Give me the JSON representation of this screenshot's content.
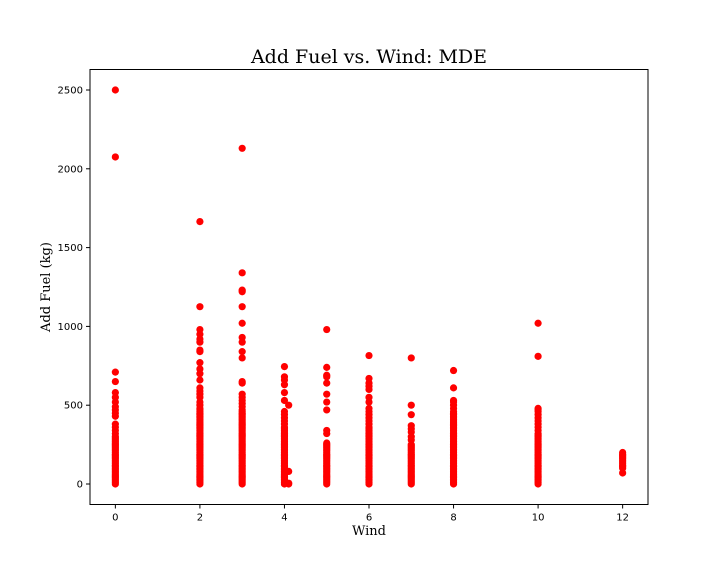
{
  "chart_data": {
    "type": "scatter",
    "title": "Add Fuel vs. Wind: MDE",
    "xlabel": "Wind",
    "ylabel": "Add Fuel (kg)",
    "xlim": [
      -0.6,
      12.6
    ],
    "ylim": [
      -130,
      2630
    ],
    "xticks": [
      0,
      2,
      4,
      6,
      8,
      10,
      12
    ],
    "yticks": [
      0,
      500,
      1000,
      1500,
      2000,
      2500
    ],
    "grid": false,
    "marker_color": "#ff0000",
    "series": [
      {
        "points": [
          {
            "wind": 0,
            "y": [
              0,
              10,
              20,
              30,
              40,
              50,
              60,
              70,
              80,
              90,
              100,
              110,
              120,
              130,
              140,
              150,
              160,
              170,
              180,
              190,
              200,
              210,
              220,
              230,
              240,
              250,
              260,
              270,
              280,
              290,
              300,
              320,
              340,
              360,
              380,
              430,
              450,
              470,
              490,
              520,
              550,
              580,
              650,
              710,
              2075,
              2500
            ]
          },
          {
            "wind": 2,
            "y": [
              0,
              10,
              20,
              30,
              40,
              50,
              60,
              70,
              80,
              90,
              100,
              110,
              120,
              130,
              140,
              150,
              160,
              170,
              180,
              190,
              200,
              210,
              220,
              230,
              240,
              250,
              260,
              270,
              280,
              290,
              300,
              310,
              320,
              330,
              340,
              350,
              360,
              370,
              380,
              390,
              400,
              410,
              420,
              430,
              440,
              450,
              460,
              470,
              480,
              500,
              520,
              550,
              570,
              590,
              610,
              660,
              700,
              730,
              770,
              840,
              850,
              900,
              920,
              950,
              980,
              1125,
              1665
            ]
          },
          {
            "wind": 3,
            "y": [
              0,
              10,
              20,
              30,
              40,
              50,
              60,
              70,
              80,
              90,
              100,
              110,
              120,
              130,
              140,
              150,
              160,
              170,
              180,
              190,
              200,
              210,
              220,
              230,
              240,
              250,
              260,
              270,
              280,
              290,
              300,
              310,
              320,
              330,
              340,
              350,
              360,
              370,
              380,
              390,
              400,
              410,
              420,
              430,
              440,
              450,
              460,
              470,
              490,
              510,
              530,
              550,
              570,
              640,
              650,
              800,
              840,
              900,
              930,
              1020,
              1125,
              1220,
              1230,
              1340,
              2130
            ]
          },
          {
            "wind": 4,
            "y": [
              0,
              10,
              20,
              30,
              40,
              50,
              60,
              70,
              80,
              90,
              100,
              110,
              120,
              130,
              140,
              150,
              160,
              170,
              180,
              190,
              200,
              210,
              220,
              230,
              240,
              250,
              260,
              270,
              280,
              290,
              300,
              310,
              320,
              330,
              340,
              350,
              360,
              380,
              400,
              420,
              440,
              460,
              530,
              580,
              630,
              660,
              680,
              745
            ]
          },
          {
            "wind": 4.1,
            "y": [
              0,
              5,
              80,
              500
            ]
          },
          {
            "wind": 5,
            "y": [
              0,
              10,
              20,
              30,
              40,
              50,
              60,
              70,
              80,
              90,
              100,
              110,
              120,
              130,
              140,
              150,
              160,
              170,
              180,
              190,
              200,
              210,
              220,
              230,
              240,
              250,
              260,
              320,
              340,
              470,
              520,
              570,
              640,
              680,
              690,
              740,
              980
            ]
          },
          {
            "wind": 6,
            "y": [
              0,
              10,
              20,
              30,
              40,
              50,
              60,
              70,
              80,
              90,
              100,
              110,
              120,
              130,
              140,
              150,
              160,
              170,
              180,
              190,
              200,
              210,
              220,
              230,
              240,
              250,
              260,
              270,
              280,
              290,
              300,
              310,
              320,
              330,
              340,
              350,
              360,
              380,
              400,
              420,
              440,
              460,
              480,
              520,
              550,
              600,
              620,
              640,
              670,
              815
            ]
          },
          {
            "wind": 7,
            "y": [
              0,
              10,
              20,
              30,
              40,
              50,
              60,
              70,
              80,
              90,
              100,
              110,
              120,
              130,
              140,
              150,
              160,
              170,
              180,
              190,
              200,
              210,
              220,
              230,
              240,
              250,
              280,
              300,
              330,
              350,
              370,
              440,
              500,
              800
            ]
          },
          {
            "wind": 8,
            "y": [
              0,
              10,
              20,
              30,
              40,
              50,
              60,
              70,
              80,
              90,
              100,
              110,
              120,
              130,
              140,
              150,
              160,
              170,
              180,
              190,
              200,
              210,
              220,
              230,
              240,
              250,
              260,
              270,
              280,
              290,
              300,
              310,
              320,
              330,
              340,
              350,
              360,
              370,
              380,
              390,
              400,
              410,
              420,
              430,
              440,
              450,
              460,
              480,
              500,
              520,
              530,
              610,
              720
            ]
          },
          {
            "wind": 10,
            "y": [
              0,
              10,
              20,
              30,
              40,
              50,
              60,
              70,
              80,
              90,
              100,
              110,
              120,
              130,
              140,
              150,
              160,
              170,
              180,
              190,
              200,
              210,
              220,
              230,
              240,
              250,
              260,
              270,
              280,
              290,
              300,
              310,
              320,
              340,
              360,
              380,
              400,
              420,
              440,
              460,
              470,
              480,
              810,
              1020
            ]
          },
          {
            "wind": 12,
            "y": [
              70,
              100,
              110,
              120,
              130,
              140,
              150,
              160,
              170,
              180,
              190,
              200
            ]
          }
        ]
      }
    ]
  }
}
